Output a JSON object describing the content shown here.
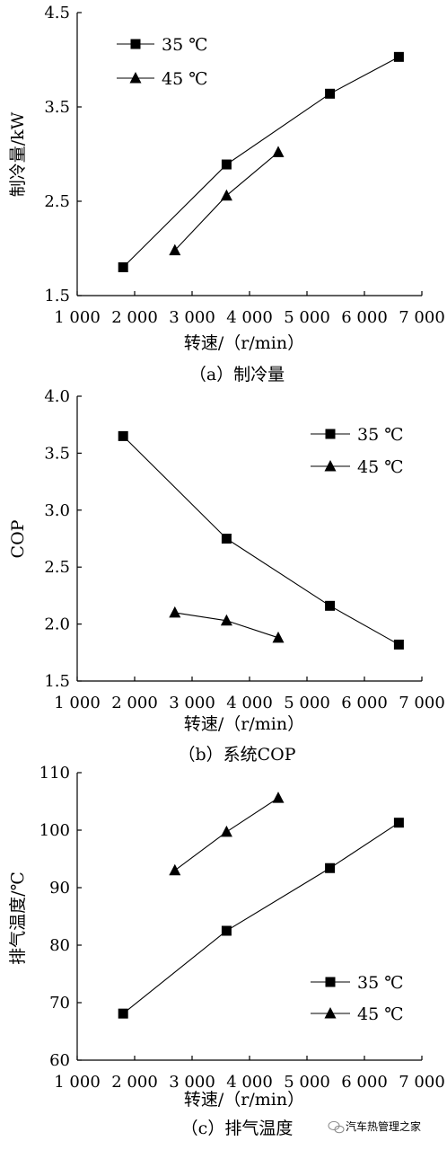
{
  "chart_data": [
    {
      "type": "line",
      "caption": "（a）制冷量",
      "xlabel": "转速/（r/min）",
      "ylabel": "制冷量/kW",
      "xlim": [
        1000,
        7000
      ],
      "ylim": [
        1.5,
        4.5
      ],
      "xticks": [
        1000,
        2000,
        3000,
        4000,
        5000,
        6000,
        7000
      ],
      "xtick_labels": [
        "1 000",
        "2 000",
        "3 000",
        "4 000",
        "5 000",
        "6 000",
        "7 000"
      ],
      "yticks": [
        1.5,
        2.5,
        3.5,
        4.5
      ],
      "ytick_labels": [
        "1.5",
        "2.5",
        "3.5",
        "4.5"
      ],
      "legend_position": "top-left",
      "series": [
        {
          "name": "35 ℃",
          "marker": "square",
          "x": [
            1800,
            3600,
            5400,
            6600
          ],
          "y": [
            1.8,
            2.89,
            3.64,
            4.03
          ]
        },
        {
          "name": "45 ℃",
          "marker": "triangle",
          "x": [
            2700,
            3600,
            4500
          ],
          "y": [
            1.98,
            2.56,
            3.02
          ]
        }
      ]
    },
    {
      "type": "line",
      "caption": "（b）系统COP",
      "xlabel": "转速/（r/min）",
      "ylabel": "COP",
      "xlim": [
        1000,
        7000
      ],
      "ylim": [
        1.5,
        4.0
      ],
      "xticks": [
        1000,
        2000,
        3000,
        4000,
        5000,
        6000,
        7000
      ],
      "xtick_labels": [
        "1 000",
        "2 000",
        "3 000",
        "4 000",
        "5 000",
        "6 000",
        "7 000"
      ],
      "yticks": [
        1.5,
        2.0,
        2.5,
        3.0,
        3.5,
        4.0
      ],
      "ytick_labels": [
        "1.5",
        "2.0",
        "2.5",
        "3.0",
        "3.5",
        "4.0"
      ],
      "legend_position": "top-right",
      "series": [
        {
          "name": "35 ℃",
          "marker": "square",
          "x": [
            1800,
            3600,
            5400,
            6600
          ],
          "y": [
            3.65,
            2.75,
            2.16,
            1.82
          ]
        },
        {
          "name": "45 ℃",
          "marker": "triangle",
          "x": [
            2700,
            3600,
            4500
          ],
          "y": [
            2.1,
            2.03,
            1.88
          ]
        }
      ]
    },
    {
      "type": "line",
      "caption": "（c）排气温度",
      "xlabel": "转速/（r/min）",
      "ylabel": "排气温度/℃",
      "xlim": [
        1000,
        7000
      ],
      "ylim": [
        60,
        110
      ],
      "xticks": [
        1000,
        2000,
        3000,
        4000,
        5000,
        6000,
        7000
      ],
      "xtick_labels": [
        "1 000",
        "2 000",
        "3 000",
        "4 000",
        "5 000",
        "6 000",
        "7 000"
      ],
      "yticks": [
        60,
        70,
        80,
        90,
        100,
        110
      ],
      "ytick_labels": [
        "60",
        "70",
        "80",
        "90",
        "100",
        "110"
      ],
      "legend_position": "bottom-right",
      "series": [
        {
          "name": "35 ℃",
          "marker": "square",
          "x": [
            1800,
            3600,
            5400,
            6600
          ],
          "y": [
            68.1,
            82.5,
            93.4,
            101.3
          ]
        },
        {
          "name": "45 ℃",
          "marker": "triangle",
          "x": [
            2700,
            3600,
            4500
          ],
          "y": [
            93,
            99.7,
            105.6
          ]
        }
      ]
    }
  ],
  "watermark": {
    "icon": "wechat-icon",
    "text": "汽车热管理之家"
  }
}
